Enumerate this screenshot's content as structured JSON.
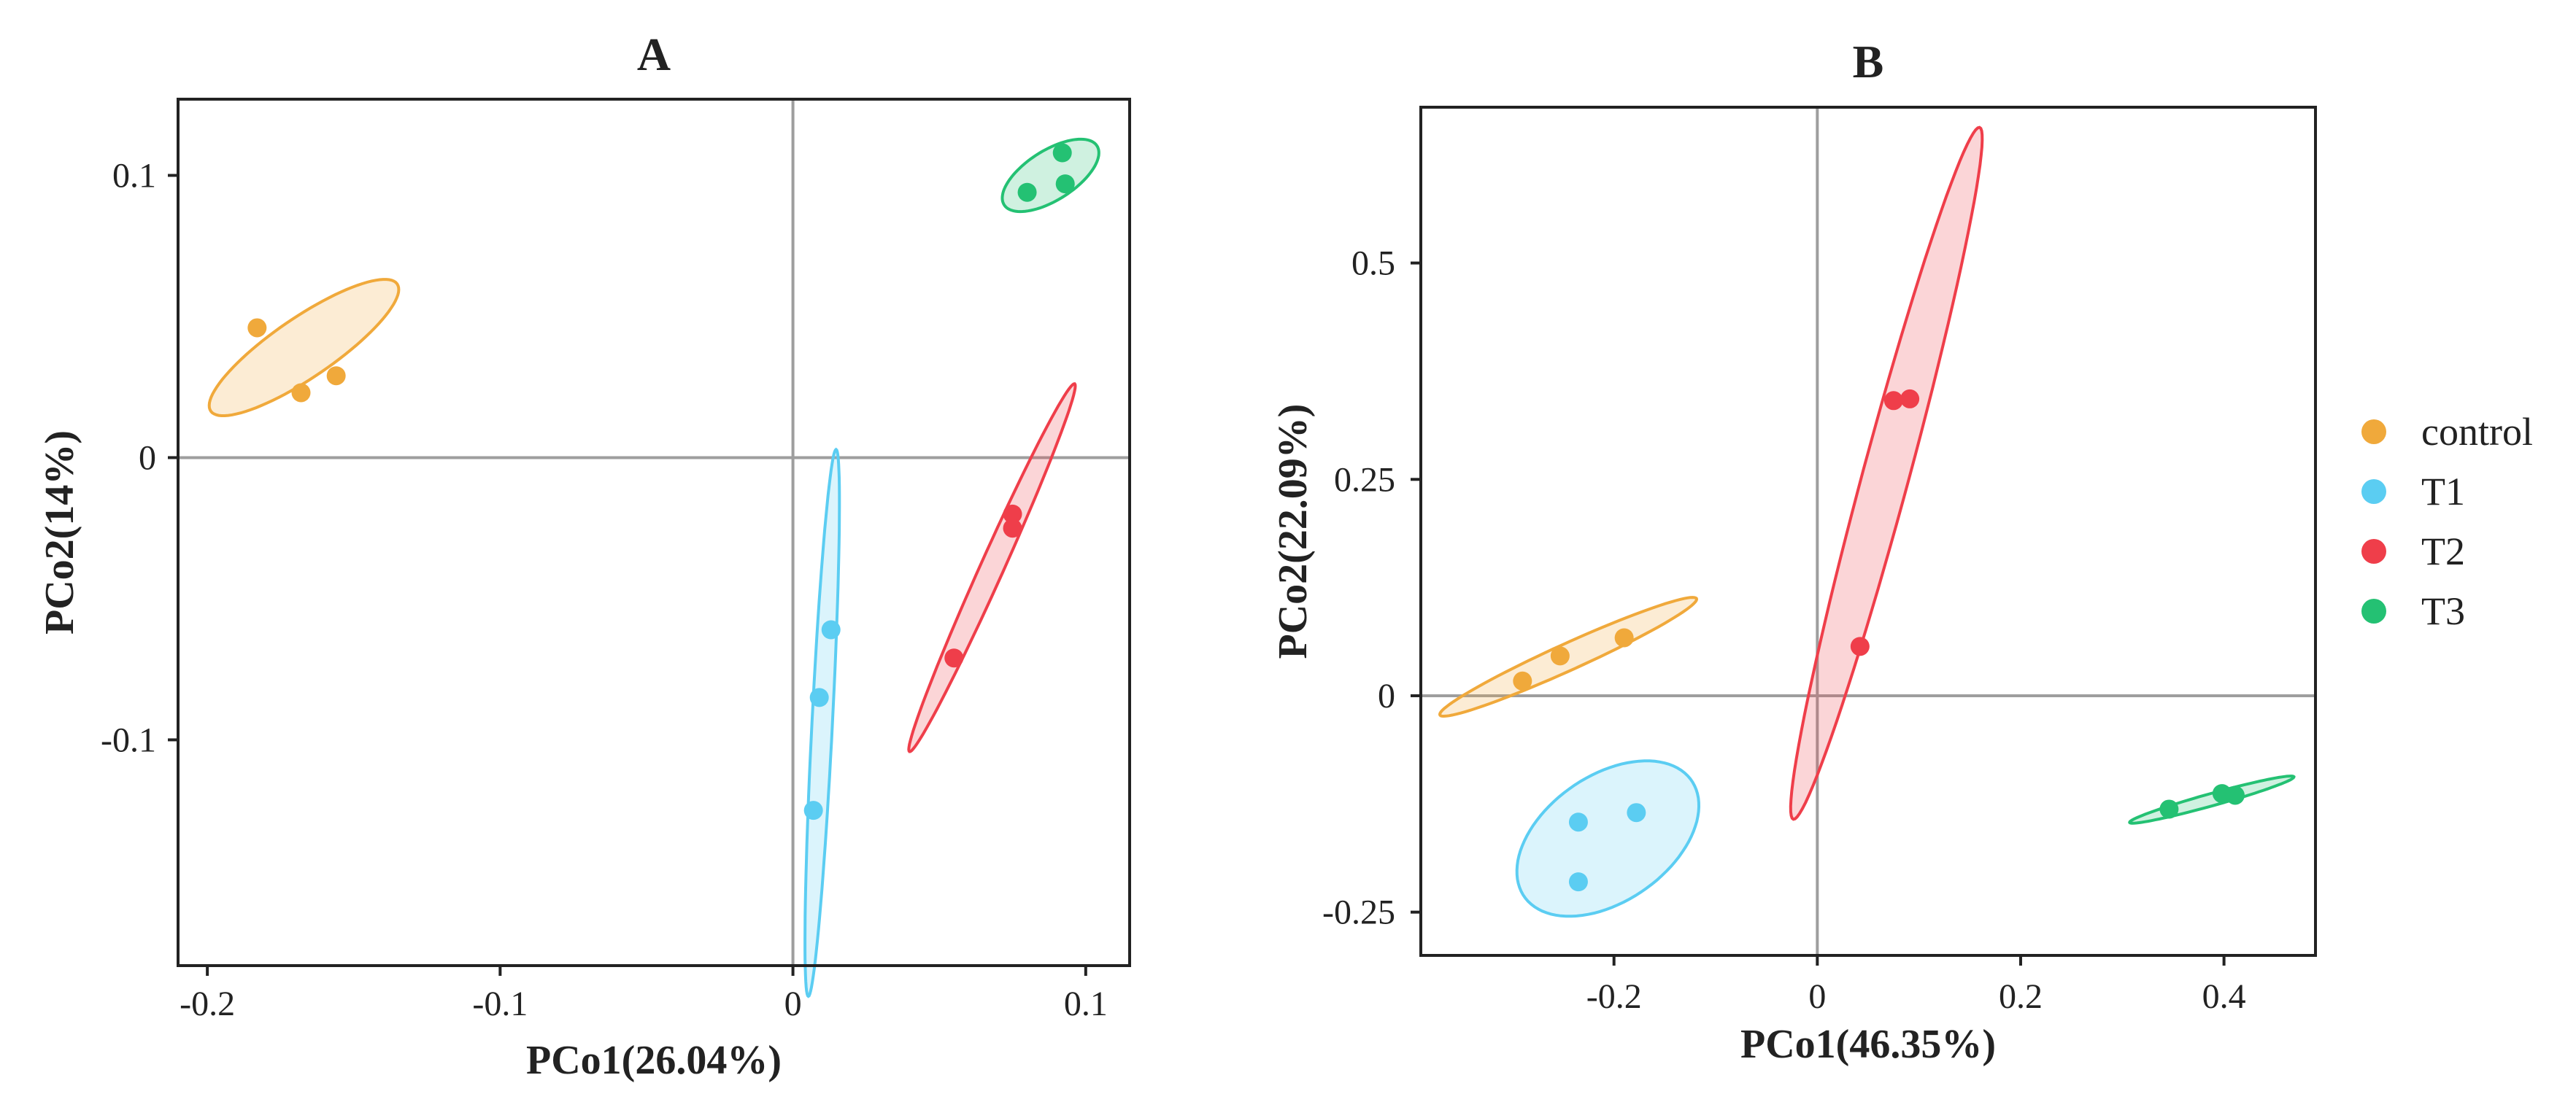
{
  "chart_data": [
    {
      "type": "scatter",
      "title": "A",
      "xlabel": "PCo1(26.04%)",
      "ylabel": "PCo2(14%)",
      "xlim": [
        -0.21,
        0.115
      ],
      "ylim": [
        -0.18,
        0.127
      ],
      "xticks": [
        {
          "value": -0.2,
          "label": "-0.2"
        },
        {
          "value": -0.1,
          "label": "-0.1"
        },
        {
          "value": 0,
          "label": "0"
        },
        {
          "value": 0.1,
          "label": "0.1"
        }
      ],
      "yticks": [
        {
          "value": -0.1,
          "label": "-0.1"
        },
        {
          "value": 0,
          "label": "0"
        },
        {
          "value": 0.1,
          "label": "0.1"
        }
      ],
      "zero_lines": true,
      "grid": false,
      "series": [
        {
          "name": "control",
          "color": "#F0A93B",
          "points": [
            [
              -0.183,
              0.046
            ],
            [
              -0.168,
              0.023
            ],
            [
              -0.156,
              0.029
            ]
          ],
          "ellipse": {
            "cx": -0.167,
            "cy": 0.039,
            "rx": 0.039,
            "ry": 0.0105,
            "angle": 35.4
          }
        },
        {
          "name": "T1",
          "color": "#5BCDF2",
          "points": [
            [
              0.013,
              -0.061
            ],
            [
              0.009,
              -0.085
            ],
            [
              0.007,
              -0.125
            ]
          ],
          "ellipse": {
            "cx": 0.01,
            "cy": -0.094,
            "rx": 0.097,
            "ry": 0.0035,
            "angle": 87.2
          }
        },
        {
          "name": "T2",
          "color": "#EF3E4A",
          "points": [
            [
              0.075,
              -0.02
            ],
            [
              0.075,
              -0.025
            ],
            [
              0.055,
              -0.071
            ]
          ],
          "ellipse": {
            "cx": 0.068,
            "cy": -0.039,
            "rx": 0.071,
            "ry": 0.004,
            "angle": 66.6
          }
        },
        {
          "name": "T3",
          "color": "#24C173",
          "points": [
            [
              0.092,
              0.108
            ],
            [
              0.093,
              0.097
            ],
            [
              0.08,
              0.094
            ]
          ],
          "ellipse": {
            "cx": 0.088,
            "cy": 0.1,
            "rx": 0.019,
            "ry": 0.0087,
            "angle": 33.9
          }
        }
      ]
    },
    {
      "type": "scatter",
      "title": "B",
      "xlabel": "PCo1(46.35%)",
      "ylabel": "PCo2(22.09%)",
      "xlim": [
        -0.39,
        0.49
      ],
      "ylim": [
        -0.3,
        0.68
      ],
      "xticks": [
        {
          "value": -0.2,
          "label": "-0.2"
        },
        {
          "value": 0,
          "label": "0"
        },
        {
          "value": 0.2,
          "label": "0.2"
        },
        {
          "value": 0.4,
          "label": "0.4"
        }
      ],
      "yticks": [
        {
          "value": -0.25,
          "label": "-0.25"
        },
        {
          "value": 0,
          "label": "0"
        },
        {
          "value": 0.25,
          "label": "0.25"
        },
        {
          "value": 0.5,
          "label": "0.5"
        }
      ],
      "zero_lines": true,
      "grid": false,
      "series": [
        {
          "name": "control",
          "color": "#F0A93B",
          "points": [
            [
              -0.29,
              0.017
            ],
            [
              -0.253,
              0.046
            ],
            [
              -0.19,
              0.067
            ]
          ],
          "ellipse": {
            "cx": -0.245,
            "cy": 0.045,
            "rx": 0.143,
            "ry": 0.015,
            "angle": 28.1
          }
        },
        {
          "name": "T1",
          "color": "#5BCDF2",
          "points": [
            [
              -0.235,
              -0.146
            ],
            [
              -0.178,
              -0.135
            ],
            [
              -0.235,
              -0.215
            ]
          ],
          "ellipse": {
            "cx": -0.206,
            "cy": -0.165,
            "rx": 0.107,
            "ry": 0.068,
            "angle": 45.2
          }
        },
        {
          "name": "T2",
          "color": "#EF3E4A",
          "points": [
            [
              0.075,
              0.341
            ],
            [
              0.091,
              0.343
            ],
            [
              0.042,
              0.057
            ]
          ],
          "ellipse": {
            "cx": 0.068,
            "cy": 0.257,
            "rx": 0.41,
            "ry": 0.023,
            "angle": 77.1
          }
        },
        {
          "name": "T3",
          "color": "#24C173",
          "points": [
            [
              0.346,
              -0.131
            ],
            [
              0.398,
              -0.113
            ],
            [
              0.411,
              -0.115
            ]
          ],
          "ellipse": {
            "cx": 0.388,
            "cy": -0.12,
            "rx": 0.085,
            "ry": 0.007,
            "angle": 18.1
          }
        }
      ]
    }
  ],
  "legend": {
    "position": "right",
    "items": [
      {
        "label": "control",
        "color": "#F0A93B"
      },
      {
        "label": "T1",
        "color": "#5BCDF2"
      },
      {
        "label": "T2",
        "color": "#EF3E4A"
      },
      {
        "label": "T3",
        "color": "#24C173"
      }
    ]
  }
}
